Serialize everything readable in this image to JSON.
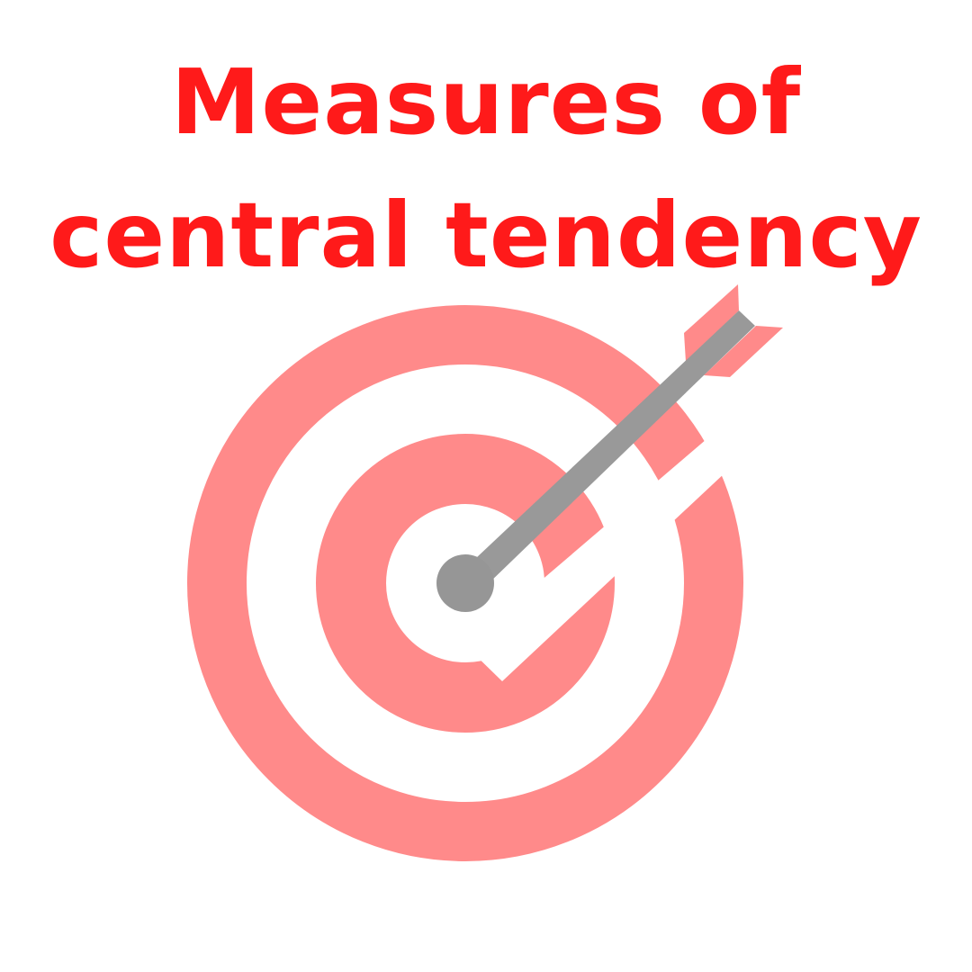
{
  "title": {
    "line1": "Measures of",
    "line2": "central tendency"
  },
  "colors": {
    "title": "#ff1a1a",
    "target_ring": "#ff8a8a",
    "background": "#ffffff",
    "arrow_shaft": "#999999",
    "bullseye": "#969696",
    "fletching": "#ff8a8a"
  },
  "graphic": {
    "icon": "target-with-arrow-icon"
  }
}
